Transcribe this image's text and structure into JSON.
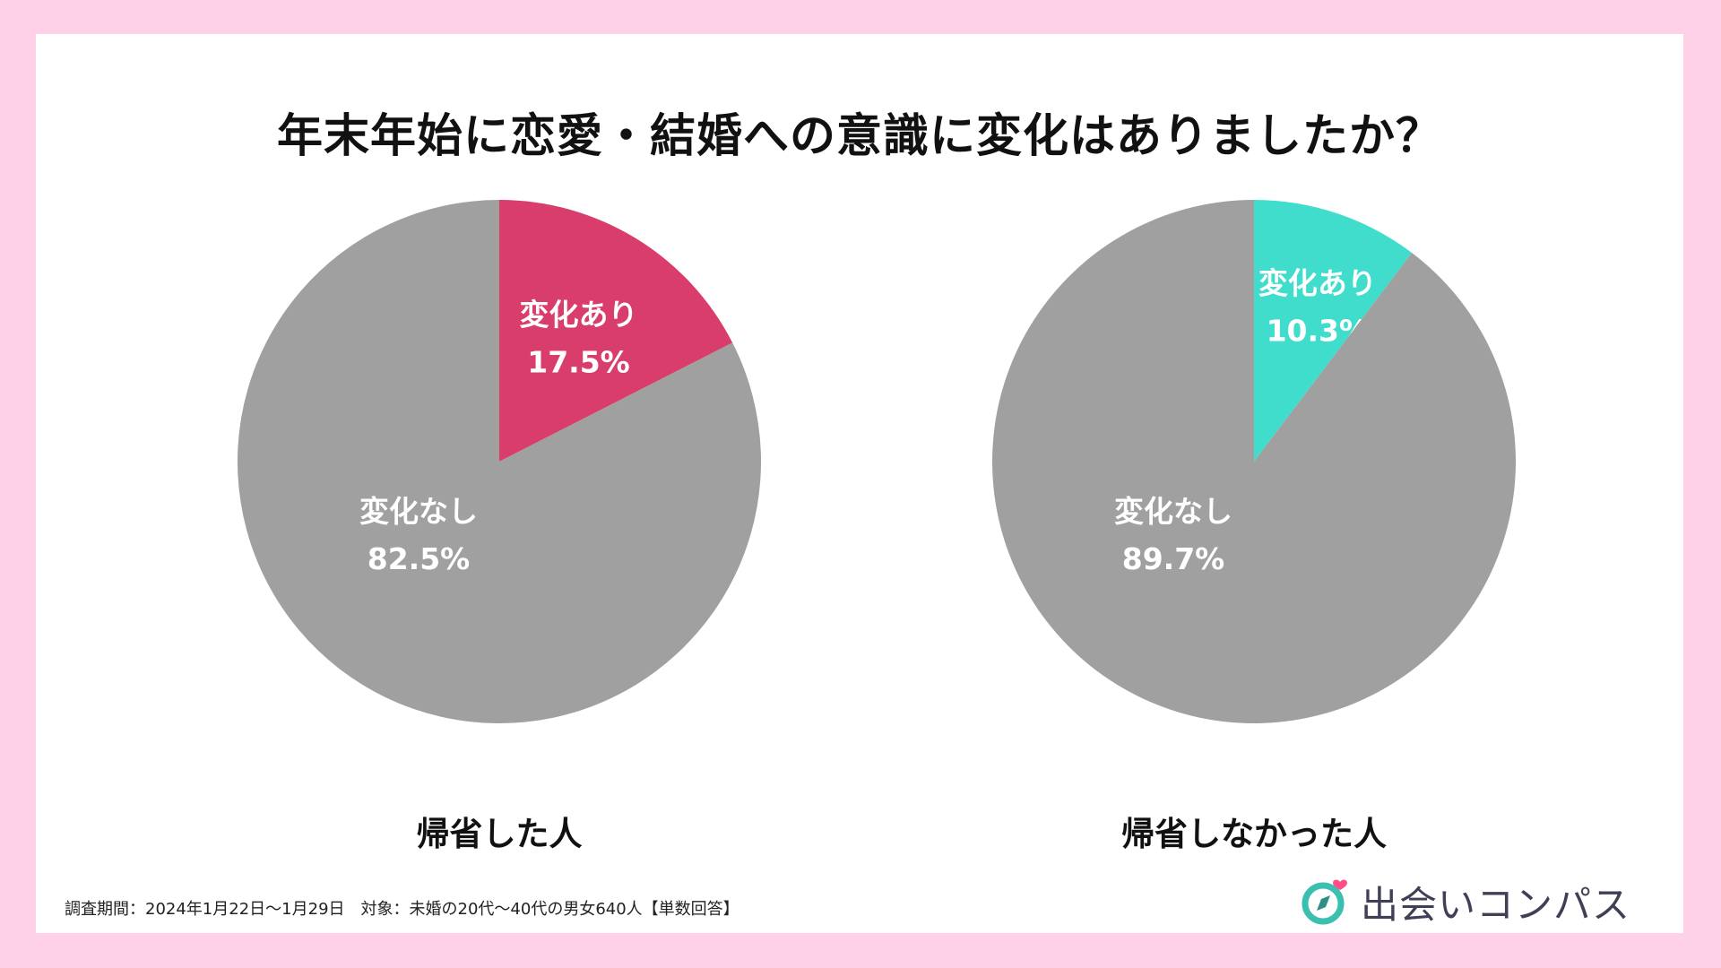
{
  "title": "年末年始に恋愛・結婚への意識に変化はありましたか？",
  "chart_data": [
    {
      "type": "pie",
      "title": "帰省した人",
      "slices": [
        {
          "label": "変化あり",
          "value": 17.5,
          "value_label": "17.5%",
          "color": "#d93d6b"
        },
        {
          "label": "変化なし",
          "value": 82.5,
          "value_label": "82.5%",
          "color": "#a0a0a0"
        }
      ]
    },
    {
      "type": "pie",
      "title": "帰省しなかった人",
      "slices": [
        {
          "label": "変化あり",
          "value": 10.3,
          "value_label": "10.3%",
          "color": "#40ddcc"
        },
        {
          "label": "変化なし",
          "value": 89.7,
          "value_label": "89.7%",
          "color": "#a0a0a0"
        }
      ]
    }
  ],
  "footnote": "調査期間：2024年1月22日〜1月29日　対象：未婚の20代〜40代の男女640人【単数回答】",
  "logo": {
    "text": "出会いコンパス",
    "icon": "compass-heart-icon",
    "colors": {
      "ring": "#3bbfae",
      "heart": "#ff4f86",
      "needle": "#2d8f87"
    }
  }
}
